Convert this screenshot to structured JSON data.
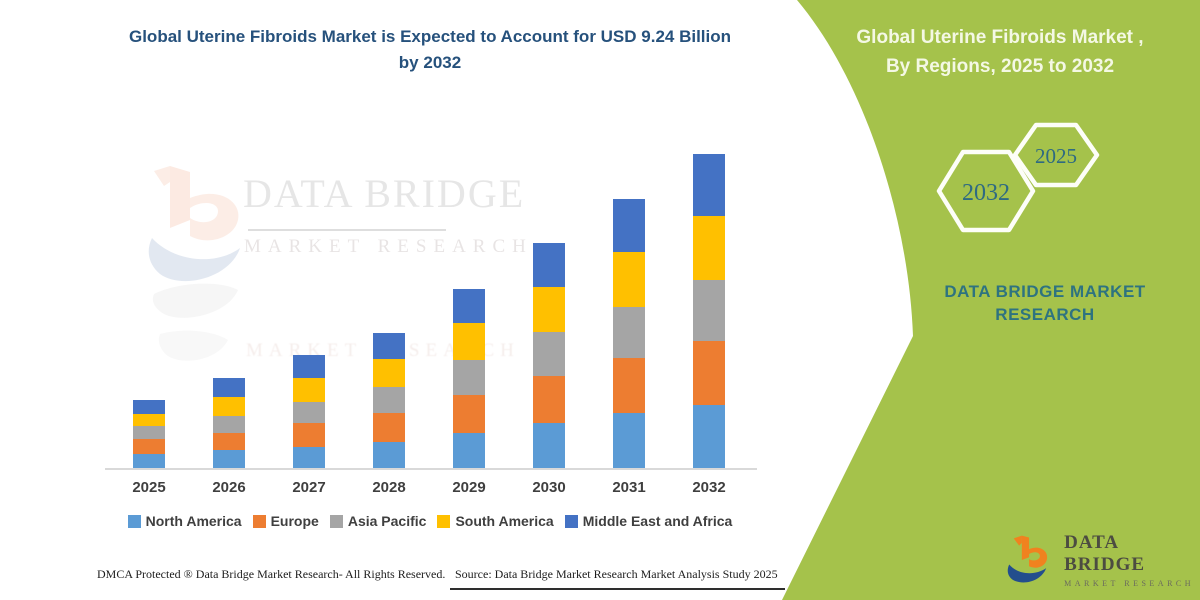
{
  "chart_data": {
    "type": "bar",
    "stacked": true,
    "title": "Global Uterine Fibroids Market is Expected to Account for USD 9.24 Billion by 2032",
    "unit": "USD Billion",
    "categories": [
      "2025",
      "2026",
      "2027",
      "2028",
      "2029",
      "2030",
      "2031",
      "2032"
    ],
    "series": [
      {
        "name": "North America",
        "color": "#5B9BD5",
        "values": [
          0.44,
          0.56,
          0.65,
          0.79,
          1.06,
          1.35,
          1.64,
          1.88
        ]
      },
      {
        "name": "Europe",
        "color": "#ED7D31",
        "values": [
          0.44,
          0.5,
          0.7,
          0.85,
          1.11,
          1.38,
          1.61,
          1.88
        ]
      },
      {
        "name": "Asia Pacific",
        "color": "#A5A5A5",
        "values": [
          0.38,
          0.5,
          0.62,
          0.76,
          1.03,
          1.29,
          1.5,
          1.79
        ]
      },
      {
        "name": "South America",
        "color": "#FFC000",
        "values": [
          0.35,
          0.56,
          0.7,
          0.82,
          1.09,
          1.32,
          1.61,
          1.88
        ]
      },
      {
        "name": "Middle East and Africa",
        "color": "#4472C4",
        "values": [
          0.41,
          0.56,
          0.67,
          0.76,
          1.0,
          1.29,
          1.55,
          1.81
        ]
      }
    ],
    "totals": [
      2.02,
      2.68,
      3.34,
      3.98,
      5.29,
      6.63,
      7.91,
      9.24
    ],
    "xlabel": "",
    "ylabel": "",
    "ylim": [
      0,
      9.6
    ],
    "grid": false,
    "legend_position": "bottom"
  },
  "left": {
    "watermark": {
      "line1": "DATA BRIDGE",
      "line2": "MARKET RESEARCH"
    },
    "footer_left": "DMCA Protected ® Data Bridge Market Research- All Rights Reserved.",
    "footer_right": "Source: Data Bridge Market Research Market Analysis Study 2025"
  },
  "right_panel": {
    "bg_color": "#A5C24B",
    "title_line1": "Global Uterine Fibroids Market ,",
    "title_line2": "By Regions, 2025 to 2032",
    "hexagons": [
      {
        "label": "2032"
      },
      {
        "label": "2025"
      }
    ],
    "brand_line1": "DATA BRIDGE MARKET",
    "brand_line2": "RESEARCH",
    "logo": {
      "name": "DATA BRIDGE",
      "sub": "MARKET RESEARCH",
      "orange": "#F0821F",
      "blue": "#234E8D"
    }
  }
}
